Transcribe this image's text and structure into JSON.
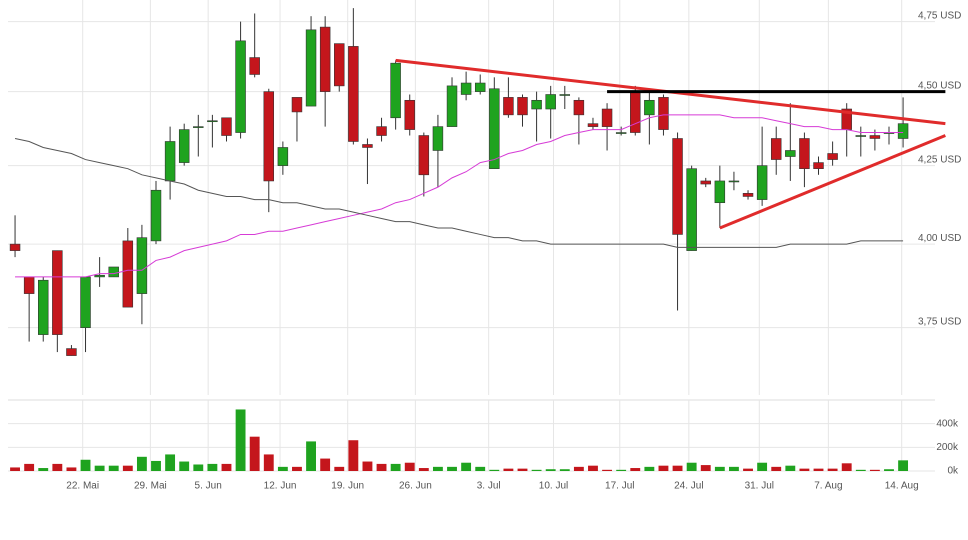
{
  "chart_data": {
    "type": "candlestick",
    "xticks": [
      {
        "value": 4.8,
        "label": "22. Mai"
      },
      {
        "value": 9.6,
        "label": "29. Mai"
      },
      {
        "value": 13.7,
        "label": "5. Jun"
      },
      {
        "value": 18.8,
        "label": "12. Jun"
      },
      {
        "value": 23.6,
        "label": "19. Jun"
      },
      {
        "value": 28.4,
        "label": "26. Jun"
      },
      {
        "value": 33.6,
        "label": "3. Jul"
      },
      {
        "value": 38.2,
        "label": "10. Jul"
      },
      {
        "value": 42.9,
        "label": "17. Jul"
      },
      {
        "value": 47.8,
        "label": "24. Jul"
      },
      {
        "value": 52.8,
        "label": "31. Jul"
      },
      {
        "value": 57.7,
        "label": "7. Aug"
      },
      {
        "value": 62.9,
        "label": "14. Aug"
      }
    ],
    "xlim": [
      -0.5,
      64.2
    ],
    "ylim": [
      3.56,
      4.83
    ],
    "log_scale": true,
    "yticks": [
      {
        "value": 3.75,
        "label": "3,75 USD"
      },
      {
        "value": 4.0,
        "label": "4,00 USD"
      },
      {
        "value": 4.25,
        "label": "4,25 USD"
      },
      {
        "value": 4.5,
        "label": "4,50 USD"
      },
      {
        "value": 4.75,
        "label": "4,75 USD"
      }
    ],
    "volume_ylim": [
      0,
      600000
    ],
    "volume_ticks": [
      {
        "value": 0,
        "label": "0k"
      },
      {
        "value": 200000,
        "label": "200k"
      },
      {
        "value": 400000,
        "label": "400k"
      }
    ],
    "grid": true,
    "up_color": "#1fa31f",
    "down_color": "#c4161c",
    "open": [
      4.0,
      3.9,
      3.73,
      3.98,
      3.69,
      3.75,
      3.9,
      3.9,
      4.01,
      3.85,
      4.01,
      4.2,
      4.26,
      4.38,
      4.4,
      4.41,
      4.36,
      4.62,
      4.5,
      4.25,
      4.48,
      4.45,
      4.73,
      4.67,
      4.66,
      4.32,
      4.38,
      4.41,
      4.47,
      4.35,
      4.3,
      4.38,
      4.49,
      4.5,
      4.24,
      4.48,
      4.48,
      4.44,
      4.44,
      4.49,
      4.47,
      4.39,
      4.44,
      4.36,
      4.5,
      4.42,
      4.48,
      4.34,
      3.98,
      4.2,
      4.13,
      4.2,
      4.16,
      4.14,
      4.34,
      4.28,
      4.34,
      4.26,
      4.29,
      4.44,
      4.35,
      4.35,
      4.36,
      4.34
    ],
    "high": [
      4.09,
      3.9,
      3.9,
      3.98,
      3.7,
      3.9,
      3.96,
      3.93,
      4.05,
      4.06,
      4.2,
      4.38,
      4.39,
      4.42,
      4.42,
      4.41,
      4.75,
      4.78,
      4.51,
      4.33,
      4.48,
      4.77,
      4.77,
      4.67,
      4.8,
      4.34,
      4.41,
      4.61,
      4.49,
      4.36,
      4.42,
      4.55,
      4.57,
      4.56,
      4.55,
      4.55,
      4.49,
      4.5,
      4.52,
      4.52,
      4.48,
      4.41,
      4.46,
      4.38,
      4.52,
      4.51,
      4.49,
      4.36,
      4.25,
      4.21,
      4.25,
      4.23,
      4.17,
      4.38,
      4.38,
      4.46,
      4.36,
      4.28,
      4.33,
      4.46,
      4.38,
      4.37,
      4.38,
      4.48
    ],
    "low": [
      3.96,
      3.71,
      3.71,
      3.68,
      3.67,
      3.68,
      3.87,
      3.9,
      3.81,
      3.76,
      4.0,
      4.14,
      4.25,
      4.28,
      4.31,
      4.33,
      4.34,
      4.55,
      4.1,
      4.22,
      4.33,
      4.45,
      4.38,
      4.5,
      4.32,
      4.19,
      4.33,
      4.37,
      4.35,
      4.15,
      4.18,
      4.38,
      4.47,
      4.49,
      4.24,
      4.41,
      4.38,
      4.33,
      4.34,
      4.44,
      4.32,
      4.37,
      4.3,
      4.35,
      4.35,
      4.32,
      4.35,
      3.8,
      3.98,
      4.18,
      4.05,
      4.17,
      4.14,
      4.12,
      4.22,
      4.2,
      4.18,
      4.22,
      4.25,
      4.28,
      4.28,
      4.3,
      4.32,
      4.31
    ],
    "close": [
      3.98,
      3.85,
      3.89,
      3.73,
      3.67,
      3.9,
      3.905,
      3.93,
      3.81,
      4.02,
      4.17,
      4.33,
      4.37,
      4.38,
      4.4,
      4.35,
      4.68,
      4.56,
      4.2,
      4.31,
      4.43,
      4.72,
      4.5,
      4.52,
      4.33,
      4.31,
      4.35,
      4.6,
      4.37,
      4.22,
      4.38,
      4.52,
      4.53,
      4.53,
      4.51,
      4.42,
      4.42,
      4.47,
      4.49,
      4.49,
      4.42,
      4.38,
      4.38,
      4.36,
      4.36,
      4.47,
      4.37,
      4.03,
      4.24,
      4.19,
      4.2,
      4.2,
      4.15,
      4.25,
      4.27,
      4.3,
      4.24,
      4.24,
      4.27,
      4.37,
      4.35,
      4.34,
      4.36,
      4.39
    ],
    "volume": [
      30000,
      60000,
      25000,
      60000,
      30000,
      95000,
      45000,
      45000,
      45000,
      120000,
      85000,
      140000,
      80000,
      55000,
      60000,
      60000,
      520000,
      290000,
      140000,
      35000,
      35000,
      250000,
      105000,
      35000,
      260000,
      80000,
      60000,
      60000,
      70000,
      25000,
      35000,
      35000,
      70000,
      35000,
      10000,
      20000,
      20000,
      10000,
      15000,
      15000,
      35000,
      45000,
      10000,
      10000,
      25000,
      35000,
      45000,
      45000,
      70000,
      50000,
      35000,
      35000,
      20000,
      70000,
      35000,
      45000,
      20000,
      20000,
      20000,
      65000,
      10000,
      10000,
      15000,
      90000
    ],
    "series": [
      {
        "color": "#d63bd6",
        "values": [
          3.9,
          3.9,
          3.9,
          3.9,
          3.9,
          3.9,
          3.91,
          3.91,
          3.92,
          3.92,
          3.95,
          3.96,
          3.98,
          3.99,
          4.0,
          4.01,
          4.03,
          4.03,
          4.04,
          4.04,
          4.05,
          4.06,
          4.07,
          4.08,
          4.09,
          4.1,
          4.11,
          4.13,
          4.14,
          4.16,
          4.18,
          4.21,
          4.23,
          4.26,
          4.27,
          4.29,
          4.3,
          4.32,
          4.33,
          4.35,
          4.36,
          4.37,
          4.37,
          4.37,
          4.39,
          4.41,
          4.42,
          4.42,
          4.42,
          4.42,
          4.42,
          4.41,
          4.41,
          4.41,
          4.4,
          4.39,
          4.38,
          4.38,
          4.37,
          4.37,
          4.36,
          4.36,
          4.36,
          4.36
        ]
      },
      {
        "color": "#555555",
        "values": [
          4.34,
          4.33,
          4.31,
          4.3,
          4.29,
          4.27,
          4.26,
          4.25,
          4.24,
          4.22,
          4.21,
          4.2,
          4.19,
          4.17,
          4.16,
          4.15,
          4.15,
          4.14,
          4.14,
          4.13,
          4.13,
          4.12,
          4.11,
          4.11,
          4.1,
          4.09,
          4.08,
          4.07,
          4.07,
          4.06,
          4.05,
          4.05,
          4.04,
          4.03,
          4.02,
          4.02,
          4.01,
          4.01,
          4.0,
          4.0,
          4.0,
          4.0,
          4.0,
          4.0,
          4.0,
          4.0,
          4.0,
          3.99,
          3.99,
          3.99,
          3.99,
          3.99,
          3.99,
          3.99,
          3.99,
          4.0,
          4.0,
          4.0,
          4.0,
          4.0,
          4.01,
          4.01,
          4.01,
          4.01
        ]
      }
    ],
    "trendlines": [
      {
        "color": "#e02b2b",
        "x": [
          27,
          66
        ],
        "y": [
          4.61,
          4.39
        ]
      },
      {
        "color": "#000000",
        "x": [
          42,
          66
        ],
        "y": [
          4.5,
          4.5
        ]
      },
      {
        "color": "#e02b2b",
        "x": [
          50,
          66
        ],
        "y": [
          4.05,
          4.35
        ]
      }
    ]
  }
}
